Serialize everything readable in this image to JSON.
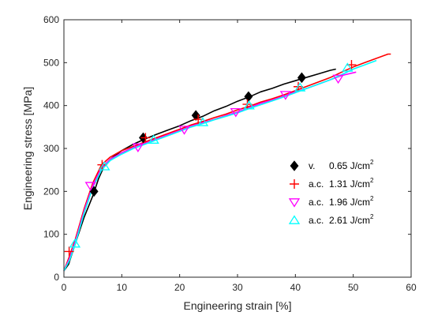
{
  "chart_data": {
    "type": "line",
    "xlabel": "Engineering strain [%]",
    "ylabel": "Engineering stress [MPa]",
    "xlim": [
      0,
      60
    ],
    "ylim": [
      0,
      600
    ],
    "xticks": [
      0,
      10,
      20,
      30,
      40,
      50,
      60
    ],
    "yticks": [
      0,
      100,
      200,
      300,
      400,
      500,
      600
    ],
    "grid": false,
    "legend_position": "right",
    "series": [
      {
        "name": "v.",
        "fluence": "0.65 J/cm",
        "exponent": "2",
        "color": "#000000",
        "marker": "diamond",
        "x": [
          0,
          0.8,
          2,
          3.5,
          5,
          6,
          7,
          8,
          10,
          12,
          14,
          16,
          18,
          20,
          22,
          24,
          26,
          28,
          30,
          32,
          34,
          36,
          38,
          40,
          42,
          44,
          46,
          47
        ],
        "y": [
          15,
          30,
          80,
          140,
          190,
          230,
          260,
          275,
          295,
          310,
          322,
          333,
          343,
          353,
          365,
          375,
          388,
          398,
          410,
          420,
          432,
          440,
          450,
          458,
          466,
          474,
          482,
          485
        ],
        "marker_x": [
          5.2,
          13.7,
          22.8,
          31.9,
          41.1
        ],
        "marker_y": [
          200,
          325,
          377,
          421,
          465
        ]
      },
      {
        "name": "a.c.",
        "fluence": "1.31 J/cm",
        "exponent": "2",
        "color": "#ff0000",
        "marker": "plus",
        "x": [
          0,
          1,
          2,
          3.5,
          5,
          6.5,
          8,
          10,
          12,
          14,
          16,
          18,
          20,
          22,
          24,
          26,
          28,
          30,
          32,
          34,
          36,
          38,
          40,
          42,
          44,
          46,
          48,
          50,
          52,
          54,
          56,
          56.5
        ],
        "y": [
          15,
          50,
          90,
          160,
          220,
          262,
          280,
          295,
          305,
          315,
          325,
          335,
          345,
          355,
          363,
          372,
          380,
          390,
          398,
          408,
          416,
          425,
          435,
          445,
          455,
          465,
          478,
          490,
          500,
          510,
          520,
          520
        ],
        "marker_x": [
          0.9,
          6.6,
          14.1,
          23.2,
          31.7,
          40.5,
          49.7
        ],
        "marker_y": [
          60,
          262,
          325,
          368,
          403,
          444,
          495
        ]
      },
      {
        "name": "a.c.",
        "fluence": "1.96 J/cm",
        "exponent": "2",
        "color": "#ff00ff",
        "marker": "triangle-down",
        "x": [
          0,
          1,
          2,
          3.5,
          5,
          6.5,
          8,
          10,
          12,
          14,
          16,
          18,
          20,
          22,
          24,
          26,
          28,
          30,
          32,
          34,
          36,
          38,
          40,
          42,
          44,
          46,
          48,
          50.5
        ],
        "y": [
          15,
          45,
          85,
          155,
          215,
          255,
          275,
          290,
          302,
          312,
          322,
          332,
          342,
          352,
          360,
          368,
          377,
          385,
          395,
          405,
          413,
          422,
          432,
          440,
          450,
          460,
          470,
          478
        ],
        "marker_x": [
          4.6,
          12.8,
          20.8,
          29.7,
          38.3,
          47.4
        ],
        "marker_y": [
          213,
          303,
          344,
          385,
          425,
          463
        ]
      },
      {
        "name": "a.c.",
        "fluence": "2.61 J/cm",
        "exponent": "2",
        "color": "#00ffff",
        "marker": "triangle-up",
        "x": [
          0,
          1,
          2,
          3.5,
          5,
          6.5,
          8,
          10,
          12,
          14,
          16,
          18,
          20,
          22,
          24,
          26,
          28,
          30,
          32,
          34,
          36,
          38,
          40,
          42,
          44,
          46,
          48,
          50,
          52,
          54
        ],
        "y": [
          15,
          40,
          80,
          150,
          210,
          250,
          272,
          287,
          300,
          310,
          320,
          330,
          340,
          350,
          358,
          367,
          375,
          383,
          393,
          402,
          411,
          420,
          430,
          440,
          450,
          460,
          472,
          485,
          495,
          505
        ],
        "marker_x": [
          1.9,
          7.0,
          15.5,
          24.0,
          32.0,
          40.8,
          49.0
        ],
        "marker_y": [
          78,
          258,
          320,
          361,
          400,
          442,
          488
        ]
      }
    ]
  }
}
